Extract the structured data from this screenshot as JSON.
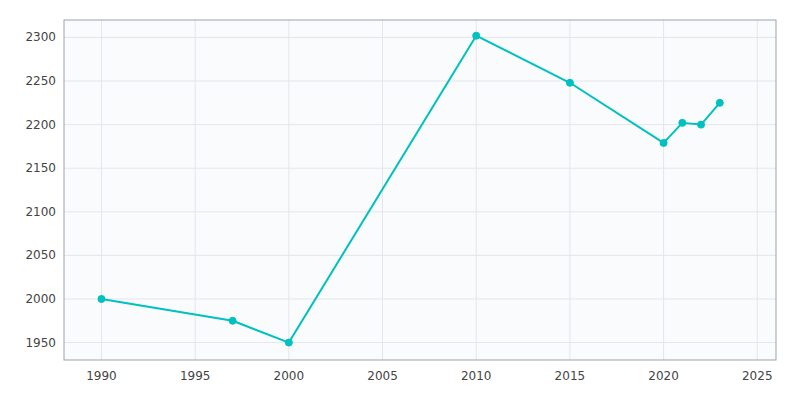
{
  "chart_data": {
    "type": "line",
    "x": [
      1990,
      1997,
      2000,
      2010,
      2015,
      2020,
      2021,
      2022,
      2023
    ],
    "values": [
      2000,
      1975,
      1950,
      2302,
      2248,
      2179,
      2202,
      2200,
      2225
    ],
    "color": "#00C0C0",
    "marker": "circle",
    "xlim": [
      1988,
      2026
    ],
    "ylim": [
      1930,
      2320
    ],
    "xticks": [
      1990,
      1995,
      2000,
      2005,
      2010,
      2015,
      2020,
      2025
    ],
    "yticks": [
      1950,
      2000,
      2050,
      2100,
      2150,
      2200,
      2250,
      2300
    ],
    "grid": true
  }
}
